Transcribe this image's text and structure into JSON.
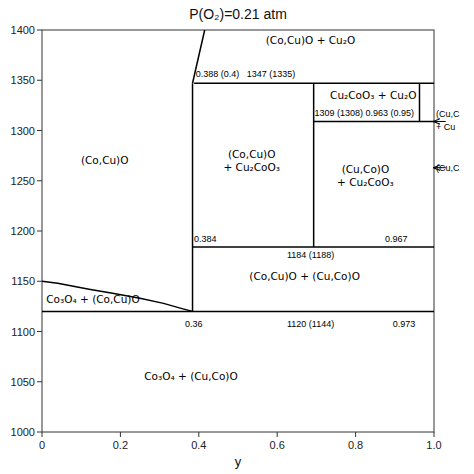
{
  "chart_data": {
    "type": "line",
    "title": "P(O₂)=0.21 atm",
    "x_label": "y",
    "xlim": [
      0,
      1.0
    ],
    "ylim": [
      1000,
      1400
    ],
    "xticks": [
      0,
      0.2,
      0.4,
      0.6,
      0.8,
      {
        "value": 1.0,
        "label": "1.0"
      }
    ],
    "yticks": [
      1000,
      1050,
      1100,
      1150,
      1200,
      1250,
      1300,
      1350,
      1400
    ],
    "grid": false,
    "series": [
      {
        "x": [
          0.388,
          1.0
        ],
        "values": [
          1347,
          1347
        ],
        "color": "#000000"
      },
      {
        "x": [
          0.693,
          1.0
        ],
        "values": [
          1309,
          1309
        ],
        "color": "#000000"
      },
      {
        "x": [
          0.384,
          1.0
        ],
        "values": [
          1184,
          1184
        ],
        "color": "#000000"
      },
      {
        "x": [
          0.0,
          1.0
        ],
        "values": [
          1120,
          1120
        ],
        "color": "#000000"
      },
      {
        "x": [
          0.384,
          0.384
        ],
        "values": [
          1120,
          1347
        ],
        "color": "#000000"
      },
      {
        "x": [
          0.693,
          0.693
        ],
        "values": [
          1184,
          1347
        ],
        "color": "#000000"
      },
      {
        "x": [
          0.963,
          0.963
        ],
        "values": [
          1309,
          1347
        ],
        "color": "#000000"
      },
      {
        "x": [
          0.0,
          0.04,
          0.08,
          0.12,
          0.18,
          0.25,
          0.31,
          0.355,
          0.384
        ],
        "values": [
          1150,
          1148,
          1145,
          1142,
          1138,
          1133,
          1128,
          1123,
          1120
        ],
        "color": "#000000"
      },
      {
        "x": [
          0.384,
          0.415
        ],
        "values": [
          1347,
          1400
        ],
        "color": "#000000"
      }
    ],
    "region_labels": [
      {
        "text": "(Co,Cu)O",
        "x": 0.16,
        "y": 1270
      },
      {
        "text": "(Co,Cu)O\n+ Cu₂CoO₃",
        "x": 0.535,
        "y": 1270
      },
      {
        "text": "(Cu,Co)O\n+ Cu₂CoO₃",
        "x": 0.825,
        "y": 1255
      },
      {
        "text": "(Co,Cu)O + Cu₂O",
        "x": 0.685,
        "y": 1390
      },
      {
        "text": "Cu₂CoO₃ + Cu₂O",
        "x": 0.845,
        "y": 1335
      },
      {
        "text": "(Co,Cu)O + (Cu,Co)O",
        "x": 0.67,
        "y": 1155
      },
      {
        "text": "Co₃O₄ + (Co,Cu)O",
        "x": 0.13,
        "y": 1132
      },
      {
        "text": "Co₃O₄ + (Cu,Co)O",
        "x": 0.38,
        "y": 1055
      }
    ],
    "annotations": [
      {
        "text": "0.388 (0.4)   1347 (1335)",
        "x": 0.392,
        "y": 1356
      },
      {
        "text": "1309 (1308) 0.963 (0.95)",
        "x": 0.695,
        "y": 1318
      },
      {
        "text": "0.384",
        "x": 0.388,
        "y": 1192
      },
      {
        "text": "0.967",
        "x": 0.875,
        "y": 1192
      },
      {
        "text": "1184 (1188)",
        "x": 0.625,
        "y": 1176
      },
      {
        "text": "0.36",
        "x": 0.365,
        "y": 1108
      },
      {
        "text": "1120 (1144)",
        "x": 0.625,
        "y": 1108
      },
      {
        "text": "0.973",
        "x": 0.895,
        "y": 1108
      },
      {
        "text": "(Cu,C",
        "x": 1.005,
        "y": 1317
      },
      {
        "text": "+ Cu",
        "x": 1.005,
        "y": 1304
      },
      {
        "text": "(Cu,C",
        "x": 1.005,
        "y": 1263
      }
    ],
    "arrows": [
      {
        "x": [
          1.03,
          0.998
        ],
        "y": [
          1309,
          1309
        ]
      },
      {
        "x": [
          1.03,
          0.998
        ],
        "y": [
          1263,
          1263
        ]
      }
    ]
  }
}
